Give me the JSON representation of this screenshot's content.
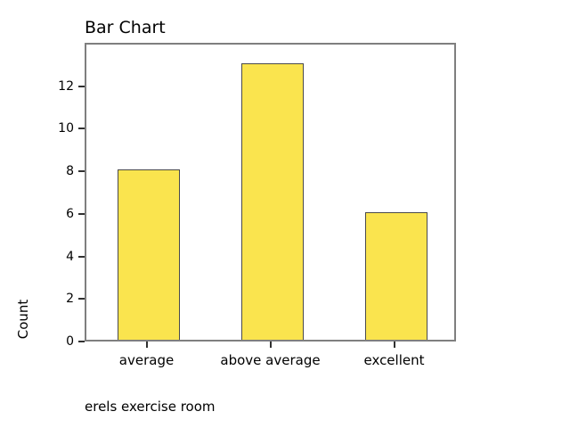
{
  "chart_data": {
    "type": "bar",
    "title": "Bar Chart",
    "categories": [
      "average",
      "above average",
      "excellent"
    ],
    "values": [
      8,
      13,
      6
    ],
    "xlabel": "erels exercise room",
    "ylabel": "Count",
    "ylim": [
      0,
      14.04
    ],
    "yticks": [
      0,
      2,
      4,
      6,
      8,
      10,
      12
    ],
    "grid": false,
    "legend": false,
    "colors": {
      "bar_fill": "#FAE44E",
      "bar_border": "#4a4a4a",
      "frame": "#7f7f7f",
      "tick": "#303030",
      "text": "#000000",
      "background": "#ffffff"
    }
  }
}
